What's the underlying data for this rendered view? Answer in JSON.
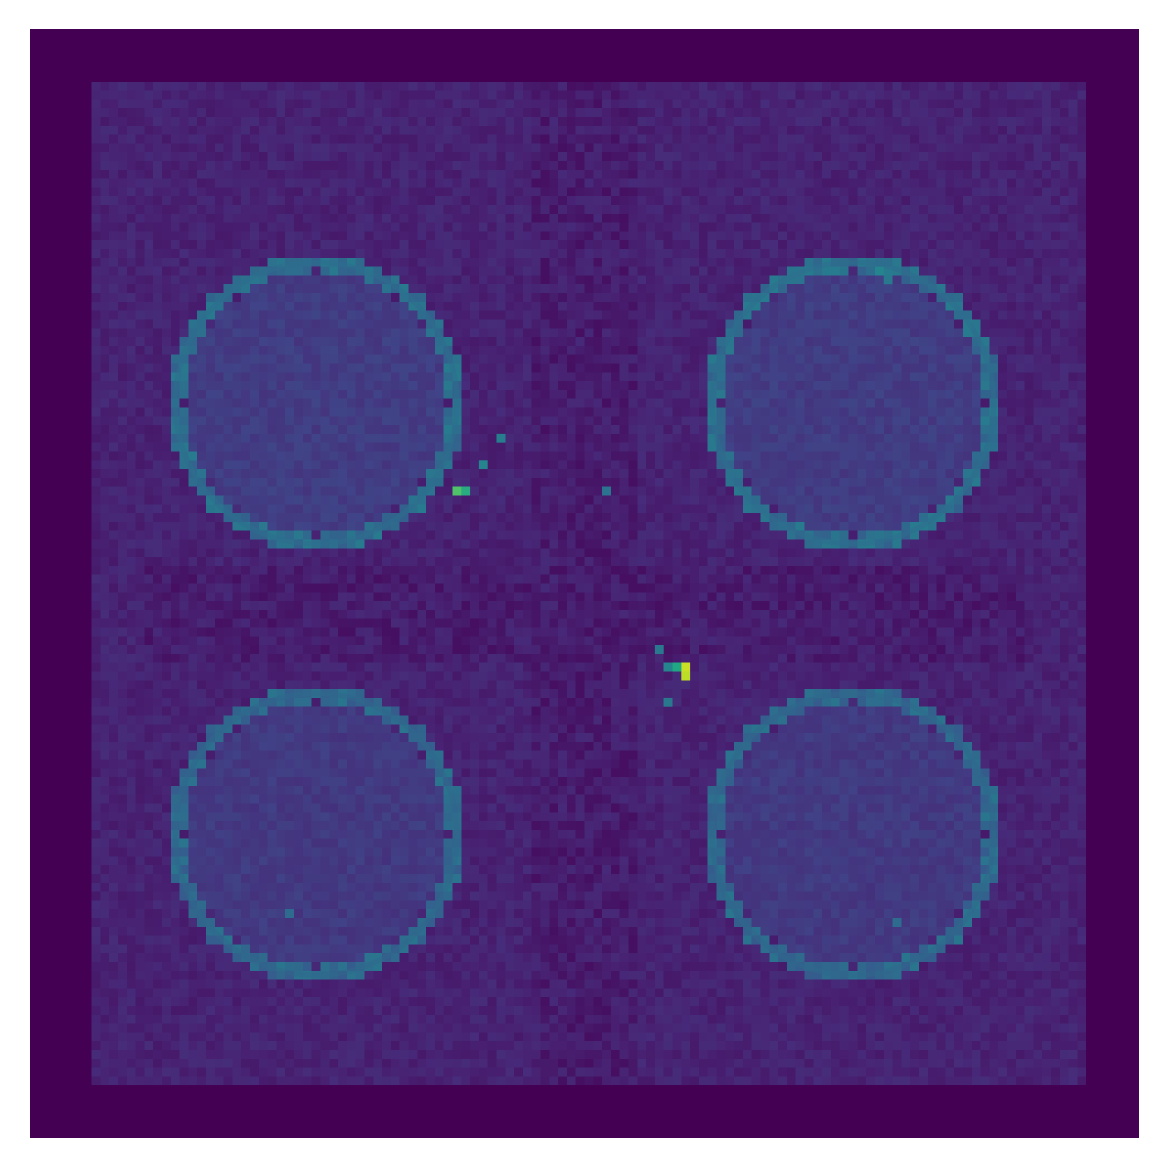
{
  "chart_data": {
    "type": "heatmap",
    "colormap": "viridis",
    "grid_size": [
      126,
      126
    ],
    "value_range": [
      0,
      1
    ],
    "axes_visible": false,
    "colorbar": false,
    "title": "",
    "background_value": 0.0,
    "outer_field": {
      "x_range": [
        7,
        119
      ],
      "y_range": [
        6,
        119
      ],
      "mean_value": 0.1
    },
    "rings": [
      {
        "name": "",
        "center": [
          32,
          42
        ],
        "radius": 16,
        "rim_value": 0.36,
        "interior_value": 0.18
      },
      {
        "name": "",
        "center": [
          93,
          42
        ],
        "radius": 16,
        "rim_value": 0.36,
        "interior_value": 0.18
      },
      {
        "name": "",
        "center": [
          32,
          91
        ],
        "radius": 16,
        "rim_value": 0.34,
        "interior_value": 0.17
      },
      {
        "name": "",
        "center": [
          93,
          91
        ],
        "radius": 16,
        "rim_value": 0.34,
        "interior_value": 0.17
      }
    ],
    "hotspots": [
      {
        "x": 48,
        "y": 52,
        "value": 0.72
      },
      {
        "x": 49,
        "y": 52,
        "value": 0.62
      },
      {
        "x": 74,
        "y": 72,
        "value": 0.92
      },
      {
        "x": 74,
        "y": 73,
        "value": 0.9
      },
      {
        "x": 73,
        "y": 72,
        "value": 0.6
      },
      {
        "x": 72,
        "y": 72,
        "value": 0.45
      },
      {
        "x": 51,
        "y": 49,
        "value": 0.45
      },
      {
        "x": 53,
        "y": 46,
        "value": 0.42
      },
      {
        "x": 65,
        "y": 52,
        "value": 0.38
      },
      {
        "x": 71,
        "y": 70,
        "value": 0.4
      },
      {
        "x": 72,
        "y": 76,
        "value": 0.4
      },
      {
        "x": 96,
        "y": 27,
        "value": 0.45
      },
      {
        "x": 97,
        "y": 28,
        "value": 0.4
      },
      {
        "x": 29,
        "y": 100,
        "value": 0.35
      },
      {
        "x": 98,
        "y": 101,
        "value": 0.35
      }
    ],
    "cross_band_value": 0.04
  }
}
